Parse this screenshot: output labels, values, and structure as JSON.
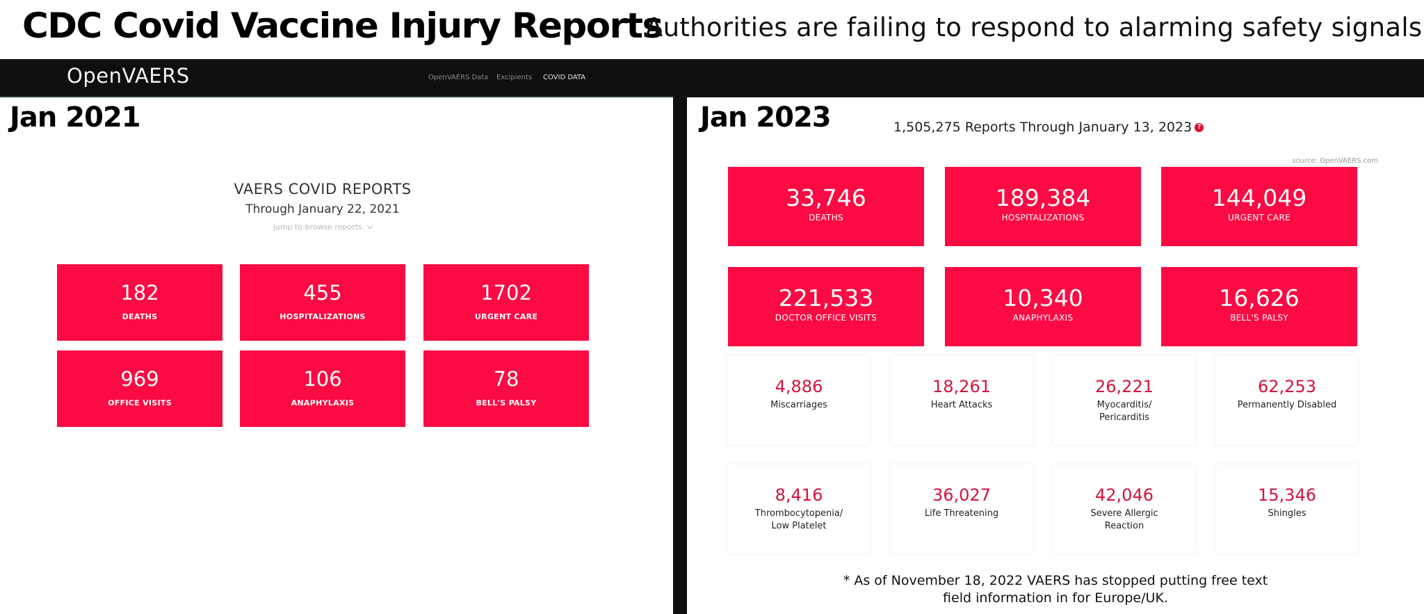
{
  "banner": {
    "headline": "CDC Covid Vaccine Injury Reports",
    "subhead": "Authorities are failing to respond to alarming safety signals."
  },
  "nav": {
    "brand": "OpenVAERS",
    "links": [
      "OpenVAERS Data",
      "Excipients",
      "COVID DATA"
    ]
  },
  "left": {
    "era": "Jan 2021",
    "title": "VAERS COVID REPORTS",
    "subtitle": "Through January 22, 2021",
    "jump": "jump to browse reports",
    "stats": [
      {
        "value": "182",
        "label": "DEATHS"
      },
      {
        "value": "455",
        "label": "HOSPITALIZATIONS"
      },
      {
        "value": "1702",
        "label": "URGENT CARE"
      },
      {
        "value": "969",
        "label": "OFFICE VISITS"
      },
      {
        "value": "106",
        "label": "ANAPHYLAXIS"
      },
      {
        "value": "78",
        "label": "BELL'S PALSY"
      }
    ]
  },
  "right": {
    "era": "Jan 2023",
    "reports": "1,505,275 Reports Through January 13, 2023",
    "help_glyph": "?",
    "source": "source: OpenVAERS.com",
    "stats": [
      {
        "value": "33,746",
        "label": "DEATHS"
      },
      {
        "value": "189,384",
        "label": "HOSPITALIZATIONS"
      },
      {
        "value": "144,049",
        "label": "URGENT CARE"
      },
      {
        "value": "221,533",
        "label": "DOCTOR OFFICE VISITS"
      },
      {
        "value": "10,340",
        "label": "ANAPHYLAXIS"
      },
      {
        "value": "16,626",
        "label": "BELL'S PALSY"
      }
    ],
    "cards": [
      {
        "value": "4,886",
        "label": "Miscarriages"
      },
      {
        "value": "18,261",
        "label": "Heart Attacks"
      },
      {
        "value": "26,221",
        "label": "Myocarditis/ Pericarditis"
      },
      {
        "value": "62,253",
        "label": "Permanently Disabled"
      },
      {
        "value": "8,416",
        "label": "Thrombocytopenia/ Low Platelet"
      },
      {
        "value": "36,027",
        "label": "Life Threatening"
      },
      {
        "value": "42,046",
        "label": "Severe Allergic Reaction"
      },
      {
        "value": "15,346",
        "label": "Shingles"
      }
    ],
    "note": "* As of November 18, 2022 VAERS has stopped putting free text field information in for Europe/UK."
  },
  "colors": {
    "stat_box": "#fc0a43",
    "card_number": "#d4133d",
    "nav_bg": "#0e0f0f"
  }
}
